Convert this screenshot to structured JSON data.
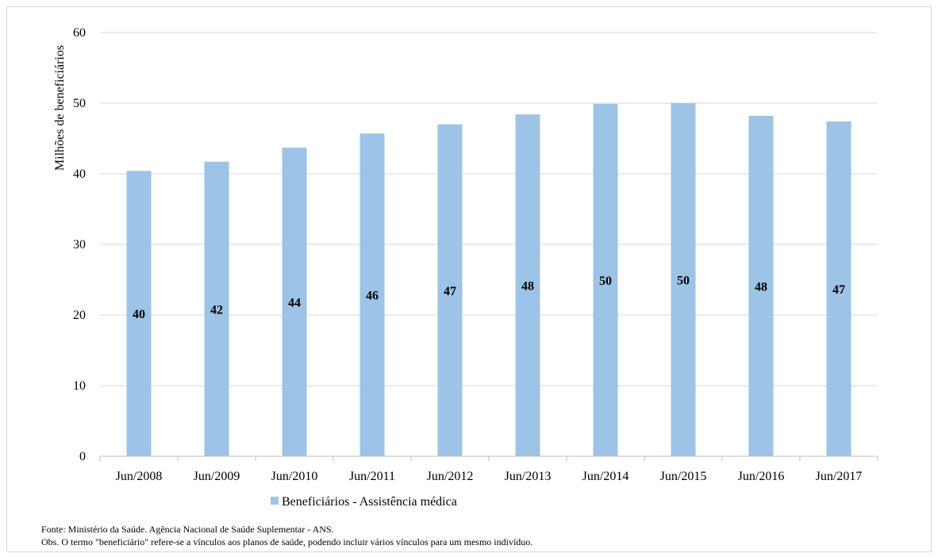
{
  "chart_data": {
    "type": "bar",
    "title": "",
    "xlabel": "",
    "ylabel": "Milhões de beneficiários",
    "ylim": [
      0,
      60
    ],
    "yticks": [
      0,
      10,
      20,
      30,
      40,
      50,
      60
    ],
    "grid": true,
    "legend_position": "bottom",
    "categories": [
      "Jun/2008",
      "Jun/2009",
      "Jun/2010",
      "Jun/2011",
      "Jun/2012",
      "Jun/2013",
      "Jun/2014",
      "Jun/2015",
      "Jun/2016",
      "Jun/2017"
    ],
    "series": [
      {
        "name": "Beneficiários - Assistência médica",
        "color": "#9dc3e6",
        "values": [
          40.4,
          41.7,
          43.7,
          45.7,
          47.0,
          48.4,
          49.9,
          50.0,
          48.2,
          47.4
        ],
        "data_labels": [
          "40",
          "42",
          "44",
          "46",
          "47",
          "48",
          "50",
          "50",
          "48",
          "47"
        ]
      }
    ]
  },
  "notes": {
    "source": "Fonte: Ministério da Saúde. Agência Nacional de Saúde Suplementar - ANS.",
    "obs": "Obs. O termo \"beneficiário\" refere-se a vínculos aos planos de saúde, podendo incluir vários vínculos para um mesmo indivíduo."
  }
}
